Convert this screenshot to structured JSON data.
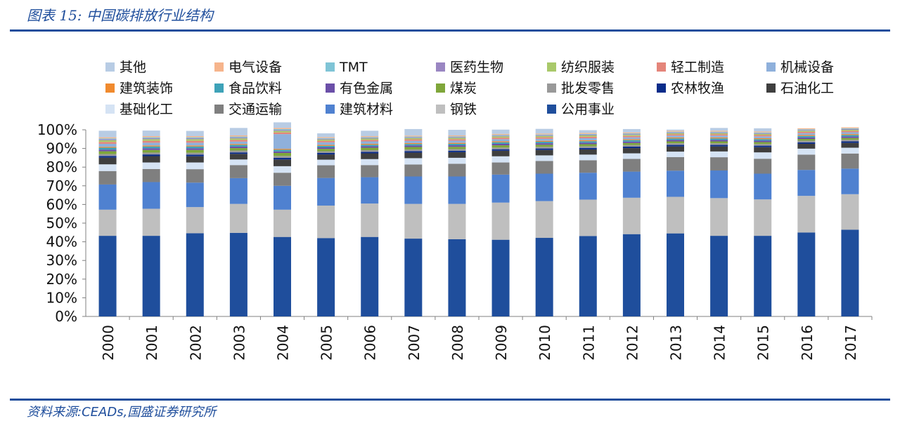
{
  "header": {
    "title": "图表 15:  中国碳排放行业结构"
  },
  "footer": {
    "source": "资料来源:CEADs,国盛证券研究所"
  },
  "chart_data": {
    "type": "bar",
    "stacked": true,
    "ylim": [
      0,
      100
    ],
    "yticks": [
      "0%",
      "10%",
      "20%",
      "30%",
      "40%",
      "50%",
      "60%",
      "70%",
      "80%",
      "90%",
      "100%"
    ],
    "categories": [
      "2000",
      "2001",
      "2002",
      "2003",
      "2004",
      "2005",
      "2006",
      "2007",
      "2008",
      "2009",
      "2010",
      "2011",
      "2012",
      "2013",
      "2014",
      "2015",
      "2016",
      "2017"
    ],
    "legend": [
      "其他",
      "电气设备",
      "TMT",
      "医药生物",
      "纺织服装",
      "轻工制造",
      "机械设备",
      "建筑装饰",
      "食品饮料",
      "有色金属",
      "煤炭",
      "批发零售",
      "农林牧渔",
      "石油化工",
      "基础化工",
      "交通运输",
      "建筑材料",
      "钢铁",
      "公用事业"
    ],
    "series": [
      {
        "name": "公用事业",
        "color": "#1f4e9c",
        "values": [
          43.2,
          43.2,
          44.6,
          44.8,
          42.6,
          42.0,
          42.6,
          41.7,
          41.4,
          41.1,
          42.1,
          43.1,
          44.1,
          44.5,
          43.2,
          43.2,
          45.0,
          46.5
        ]
      },
      {
        "name": "钢铁",
        "color": "#bfbfbf",
        "values": [
          14.0,
          14.5,
          14.0,
          15.5,
          14.6,
          17.4,
          17.9,
          18.6,
          18.9,
          19.9,
          19.7,
          19.5,
          19.5,
          19.6,
          20.2,
          19.5,
          19.6,
          19.0
        ]
      },
      {
        "name": "建筑材料",
        "color": "#4f81d0",
        "values": [
          13.5,
          14.3,
          13.1,
          13.8,
          12.8,
          14.8,
          14.1,
          14.7,
          14.7,
          15.0,
          14.7,
          14.4,
          14.0,
          14.0,
          14.8,
          13.8,
          13.9,
          13.7
        ]
      },
      {
        "name": "交通运输",
        "color": "#7f7f7f",
        "values": [
          7.2,
          7.0,
          7.2,
          7.0,
          7.0,
          6.8,
          6.5,
          6.4,
          6.8,
          6.5,
          6.8,
          6.7,
          6.8,
          7.3,
          7.1,
          8.0,
          8.2,
          8.1
        ]
      },
      {
        "name": "基础化工",
        "color": "#d5e3f4",
        "values": [
          3.6,
          3.5,
          3.6,
          3.0,
          3.5,
          3.0,
          3.2,
          3.4,
          3.2,
          3.3,
          3.0,
          3.0,
          3.0,
          2.9,
          3.1,
          3.4,
          3.2,
          3.1
        ]
      },
      {
        "name": "石油化工",
        "color": "#3f3f3f",
        "values": [
          3.6,
          3.4,
          3.3,
          3.0,
          3.6,
          2.8,
          3.1,
          3.0,
          3.0,
          3.0,
          2.9,
          2.8,
          2.8,
          2.8,
          2.7,
          2.8,
          2.6,
          2.6
        ]
      },
      {
        "name": "农林牧渔",
        "color": "#0a2c8a",
        "values": [
          0.9,
          0.9,
          0.9,
          0.8,
          0.9,
          0.8,
          0.8,
          0.8,
          0.8,
          0.8,
          0.8,
          0.8,
          0.8,
          0.8,
          0.8,
          0.8,
          0.8,
          0.8
        ]
      },
      {
        "name": "批发零售",
        "color": "#999999",
        "values": [
          1.0,
          1.0,
          1.0,
          1.0,
          1.0,
          0.9,
          0.9,
          0.9,
          0.9,
          0.9,
          0.9,
          0.9,
          0.9,
          0.9,
          0.9,
          0.9,
          0.9,
          0.9
        ]
      },
      {
        "name": "煤炭",
        "color": "#7fa63a",
        "values": [
          1.5,
          1.4,
          1.5,
          1.3,
          1.6,
          1.3,
          1.3,
          1.3,
          1.2,
          1.2,
          1.1,
          1.1,
          1.0,
          1.0,
          1.0,
          1.0,
          0.9,
          0.9
        ]
      },
      {
        "name": "有色金属",
        "color": "#6b4fa8",
        "values": [
          0.9,
          0.9,
          0.9,
          0.8,
          0.8,
          0.8,
          0.8,
          0.8,
          0.8,
          0.8,
          0.8,
          0.8,
          0.8,
          0.8,
          0.8,
          0.8,
          0.8,
          0.8
        ]
      },
      {
        "name": "食品饮料",
        "color": "#3ea2b8",
        "values": [
          1.0,
          1.0,
          1.0,
          0.9,
          0.9,
          0.8,
          0.8,
          0.8,
          0.8,
          0.8,
          0.8,
          0.8,
          0.8,
          0.8,
          0.8,
          0.8,
          0.8,
          0.8
        ]
      },
      {
        "name": "建筑装饰",
        "color": "#f08a2e",
        "values": [
          0.5,
          0.5,
          0.5,
          0.5,
          0.5,
          0.5,
          0.5,
          0.5,
          0.5,
          0.5,
          0.5,
          0.5,
          0.5,
          0.5,
          0.5,
          0.5,
          0.5,
          0.5
        ]
      },
      {
        "name": "机械设备",
        "color": "#8fb0db",
        "values": [
          1.6,
          1.5,
          1.5,
          1.3,
          7.9,
          1.4,
          1.3,
          1.2,
          1.2,
          1.2,
          1.1,
          1.1,
          1.0,
          1.0,
          1.0,
          1.0,
          1.0,
          1.0
        ]
      },
      {
        "name": "轻工制造",
        "color": "#e4857a",
        "values": [
          1.0,
          1.0,
          1.0,
          0.9,
          0.9,
          0.8,
          0.8,
          0.8,
          0.8,
          0.8,
          0.8,
          0.8,
          0.7,
          0.7,
          0.7,
          0.7,
          0.7,
          0.7
        ]
      },
      {
        "name": "纺织服装",
        "color": "#a9c96a",
        "values": [
          0.9,
          0.9,
          0.9,
          0.8,
          0.8,
          0.7,
          0.7,
          0.7,
          0.7,
          0.7,
          0.7,
          0.7,
          0.6,
          0.6,
          0.6,
          0.6,
          0.6,
          0.6
        ]
      },
      {
        "name": "医药生物",
        "color": "#9a86c2",
        "values": [
          0.5,
          0.5,
          0.5,
          0.5,
          0.5,
          0.4,
          0.4,
          0.4,
          0.4,
          0.4,
          0.4,
          0.4,
          0.4,
          0.4,
          0.4,
          0.4,
          0.4,
          0.4
        ]
      },
      {
        "name": "TMT",
        "color": "#7fc4d6",
        "values": [
          0.5,
          0.5,
          0.5,
          0.5,
          0.5,
          0.4,
          0.4,
          0.4,
          0.4,
          0.4,
          0.4,
          0.4,
          0.4,
          0.4,
          0.4,
          0.4,
          0.4,
          0.4
        ]
      },
      {
        "name": "电气设备",
        "color": "#f6b48c",
        "values": [
          0.6,
          0.6,
          0.6,
          0.6,
          0.6,
          0.5,
          0.5,
          0.5,
          0.5,
          0.5,
          0.5,
          0.5,
          0.5,
          0.5,
          0.5,
          0.5,
          0.5,
          0.5
        ]
      },
      {
        "name": "其他",
        "color": "#b8cce4",
        "values": [
          3.5,
          3.0,
          2.8,
          4.0,
          3.0,
          2.0,
          2.9,
          3.5,
          3.0,
          2.3,
          2.5,
          1.5,
          1.8,
          0.6,
          1.5,
          1.7,
          0.0,
          0.0
        ]
      }
    ]
  }
}
